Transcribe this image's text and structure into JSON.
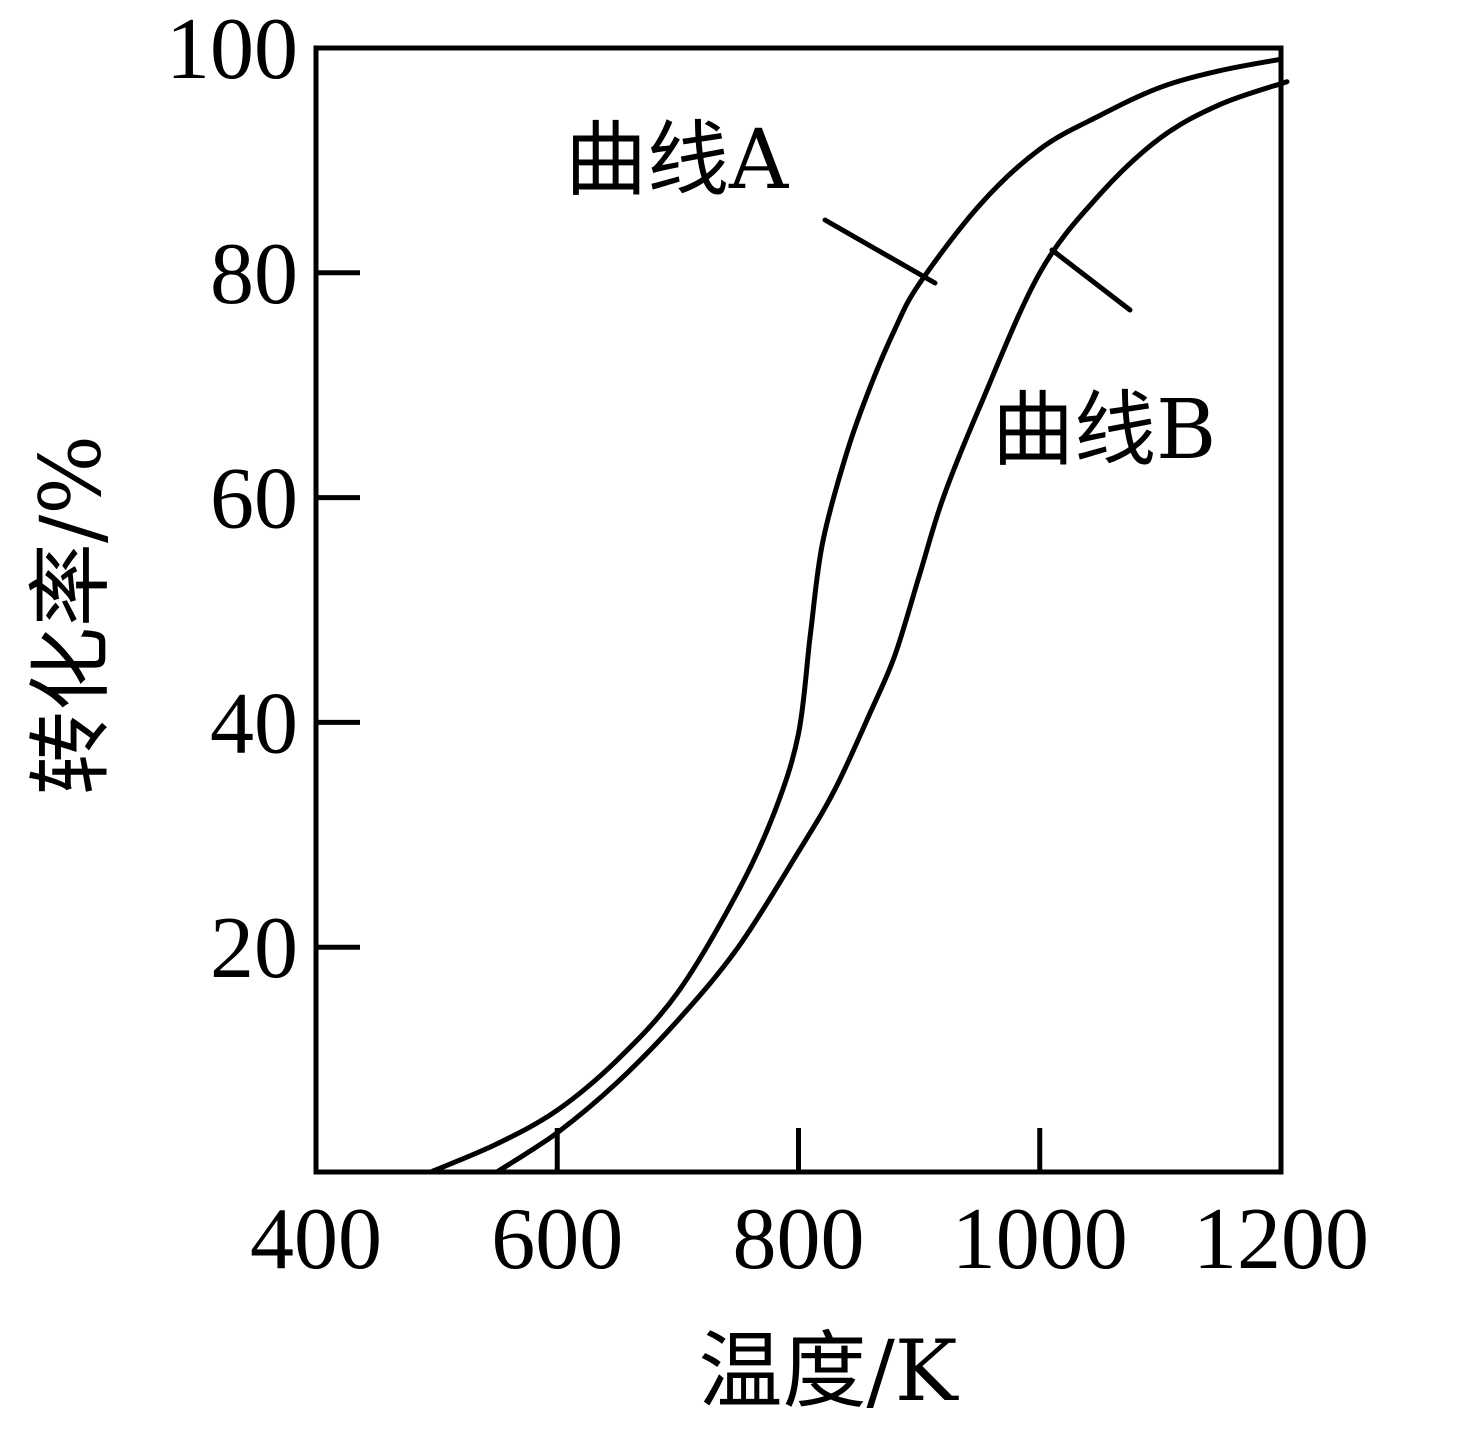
{
  "chart_data": {
    "type": "line",
    "xlabel": "温度/K",
    "ylabel": "转化率/%",
    "xlim": [
      400,
      1200
    ],
    "ylim": [
      0,
      100
    ],
    "x_ticks": [
      400,
      600,
      800,
      1000,
      1200
    ],
    "y_ticks": [
      20,
      40,
      60,
      80,
      100
    ],
    "grid": false,
    "series": [
      {
        "name": "曲线A",
        "x": [
          495,
          550,
          600,
          650,
          700,
          750,
          780,
          800,
          810,
          820,
          840,
          860,
          880,
          900,
          950,
          1000,
          1050,
          1100,
          1150,
          1200
        ],
        "y": [
          0,
          2.5,
          5.5,
          10,
          16,
          25,
          32,
          39,
          48,
          56,
          64,
          70,
          75,
          79,
          86,
          91,
          94,
          96.5,
          98,
          99
        ]
      },
      {
        "name": "曲线B",
        "x": [
          550,
          600,
          650,
          700,
          750,
          800,
          830,
          860,
          880,
          900,
          920,
          950,
          1000,
          1050,
          1100,
          1150,
          1205
        ],
        "y": [
          0,
          3.5,
          8,
          13.5,
          20,
          28.5,
          34,
          41,
          46,
          53,
          60,
          68,
          80,
          87,
          92,
          95,
          97
        ]
      }
    ],
    "annotations": [
      {
        "text": "曲线A",
        "target": "曲线A"
      },
      {
        "text": "曲线B",
        "target": "曲线B"
      }
    ]
  }
}
